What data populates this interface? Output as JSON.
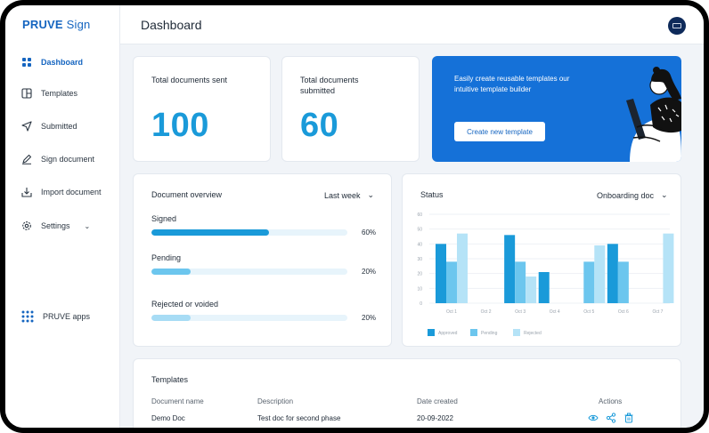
{
  "app": {
    "logo_bold": "PRUVE",
    "logo_light": " Sign"
  },
  "header": {
    "title": "Dashboard",
    "avatar_icon": "user-badge-icon"
  },
  "sidebar": {
    "items": [
      {
        "label": "Dashboard",
        "icon": "grid-icon",
        "active": true
      },
      {
        "label": "Templates",
        "icon": "template-icon"
      },
      {
        "label": "Submitted",
        "icon": "send-icon"
      },
      {
        "label": "Sign document",
        "icon": "pen-icon"
      },
      {
        "label": "Import document",
        "icon": "import-icon"
      },
      {
        "label": "Settings",
        "icon": "gear-icon"
      }
    ],
    "apps_label": "PRUVE apps"
  },
  "stats": [
    {
      "label": "Total documents sent",
      "value": "100"
    },
    {
      "label": "Total documents submitted",
      "value": "60"
    }
  ],
  "promo": {
    "text": "Easily create reusable templates our intuitive template builder",
    "button": "Create new template"
  },
  "overview": {
    "title": "Document overview",
    "range": "Last week",
    "rows": [
      {
        "label": "Signed",
        "percent": 60,
        "percent_label": "60%",
        "color": "#1a9ad9"
      },
      {
        "label": "Pending",
        "percent": 20,
        "percent_label": "20%",
        "color": "#6cc6ee"
      },
      {
        "label": "Rejected or voided",
        "percent": 20,
        "percent_label": "20%",
        "color": "#a7dcf5"
      }
    ]
  },
  "status": {
    "title": "Status",
    "filter": "Onboarding doc",
    "chart_data": {
      "type": "bar",
      "categories": [
        "Oct 1",
        "Oct 2",
        "Oct 3",
        "Oct 4",
        "Oct 5",
        "Oct 6",
        "Oct 7"
      ],
      "series": [
        {
          "name": "Approved",
          "values": [
            40,
            0,
            46,
            21,
            0,
            40,
            0
          ],
          "color": "#1a9ad9"
        },
        {
          "name": "Pending",
          "values": [
            28,
            0,
            28,
            0,
            28,
            28,
            0
          ],
          "color": "#6cc6ee"
        },
        {
          "name": "Rejected",
          "values": [
            47,
            0,
            18,
            0,
            39,
            0,
            47
          ],
          "color": "#b5e3f7"
        }
      ],
      "yticks": [
        "0",
        "10",
        "20",
        "30",
        "40",
        "50",
        "60"
      ],
      "ylim": [
        0,
        60
      ],
      "grid": true,
      "legend": "bottom-left"
    }
  },
  "templates": {
    "title": "Templates",
    "columns": [
      "Document name",
      "Description",
      "Date created",
      "Actions"
    ],
    "rows": [
      {
        "name": "Demo Doc",
        "description": "Test doc for second phase",
        "date": "20-09-2022"
      }
    ],
    "action_icons": [
      "eye-icon",
      "share-icon",
      "trash-icon"
    ]
  }
}
